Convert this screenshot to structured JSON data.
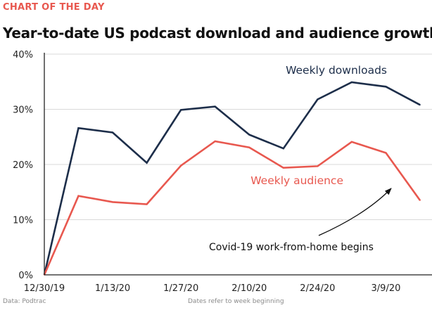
{
  "kicker": "CHART OF THE DAY",
  "title": "Year-to-date US podcast download and audience growth",
  "source_note": "Data: Podtrac",
  "date_note": "Dates refer to week beginning",
  "colors": {
    "downloads": "#1d2e4a",
    "audience": "#e8584f",
    "grid": "#d9d9d9",
    "axis": "#222222"
  },
  "chart_data": {
    "type": "line",
    "x": [
      "12/30/19",
      "1/6/20",
      "1/13/20",
      "1/20/20",
      "1/27/20",
      "2/3/20",
      "2/10/20",
      "2/17/20",
      "2/24/20",
      "3/2/20",
      "3/9/20",
      "3/16/20"
    ],
    "x_tick_labels": [
      "12/30/19",
      "1/13/20",
      "1/27/20",
      "2/10/20",
      "2/24/20",
      "3/9/20"
    ],
    "x_tick_index": [
      0,
      2,
      4,
      6,
      8,
      10
    ],
    "y_ticks": [
      "0%",
      "10%",
      "20%",
      "30%",
      "40%"
    ],
    "ylim": [
      0,
      40
    ],
    "grid": true,
    "series": [
      {
        "name": "Weekly downloads",
        "key": "downloads",
        "values": [
          0,
          26.6,
          25.8,
          20.3,
          29.9,
          30.5,
          25.4,
          22.9,
          31.8,
          34.9,
          34.1,
          30.8
        ]
      },
      {
        "name": "Weekly audience",
        "key": "audience",
        "values": [
          0,
          14.3,
          13.2,
          12.8,
          19.8,
          24.2,
          23.1,
          19.4,
          19.7,
          24.1,
          22.1,
          13.5
        ]
      }
    ],
    "annotation": "Covid-19 work-from-home begins"
  }
}
